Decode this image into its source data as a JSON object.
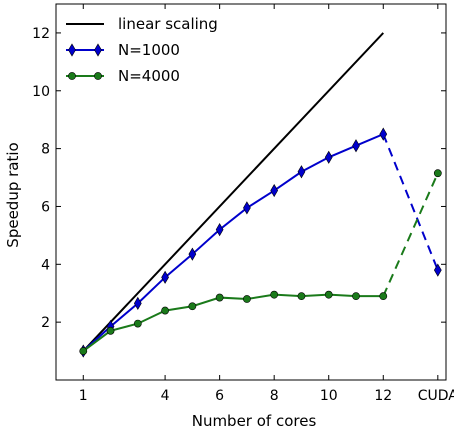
{
  "chart_data": {
    "type": "line",
    "xlabel": "Number of cores",
    "ylabel": "Speedup ratio",
    "x_tick_labels": [
      "1",
      "4",
      "6",
      "8",
      "10",
      "12",
      "CUDA"
    ],
    "y_tick_labels": [
      "2",
      "4",
      "6",
      "8",
      "10",
      "12"
    ],
    "xlim": [
      0,
      14.3
    ],
    "ylim": [
      0,
      13
    ],
    "grid": false,
    "legend_position": "top-left",
    "series": [
      {
        "name": "linear scaling",
        "color": "#000000",
        "marker": "none",
        "points": [
          [
            1,
            1
          ],
          [
            12,
            12
          ]
        ]
      },
      {
        "name": "N=1000",
        "color": "#0000cc",
        "marker": "diamond",
        "points": [
          [
            1,
            1.0
          ],
          [
            2,
            1.85
          ],
          [
            3,
            2.65
          ],
          [
            4,
            3.55
          ],
          [
            5,
            4.35
          ],
          [
            6,
            5.2
          ],
          [
            7,
            5.95
          ],
          [
            8,
            6.55
          ],
          [
            9,
            7.2
          ],
          [
            10,
            7.7
          ],
          [
            11,
            8.1
          ],
          [
            12,
            8.5
          ]
        ],
        "cuda_value": 3.8
      },
      {
        "name": "N=4000",
        "color": "#1a7a1a",
        "marker": "circle",
        "points": [
          [
            1,
            1.0
          ],
          [
            2,
            1.7
          ],
          [
            3,
            1.95
          ],
          [
            4,
            2.4
          ],
          [
            5,
            2.55
          ],
          [
            6,
            2.85
          ],
          [
            7,
            2.8
          ],
          [
            8,
            2.95
          ],
          [
            9,
            2.9
          ],
          [
            10,
            2.95
          ],
          [
            11,
            2.9
          ],
          [
            12,
            2.9
          ]
        ],
        "cuda_value": 7.15
      }
    ]
  }
}
